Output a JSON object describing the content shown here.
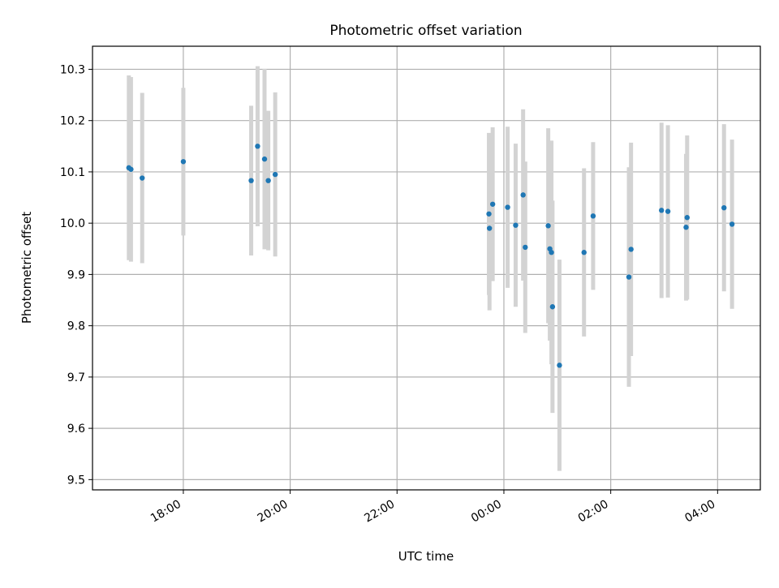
{
  "chart_data": {
    "type": "scatter",
    "title": "Photometric offset variation",
    "xlabel": "UTC time",
    "ylabel": "Photometric offset",
    "x_unit": "hours",
    "xlim": [
      16.3,
      28.8
    ],
    "ylim": [
      9.48,
      10.345
    ],
    "grid": true,
    "x_ticks": [
      {
        "value": 18,
        "label": "18:00"
      },
      {
        "value": 20,
        "label": "20:00"
      },
      {
        "value": 22,
        "label": "22:00"
      },
      {
        "value": 24,
        "label": "00:00"
      },
      {
        "value": 26,
        "label": "02:00"
      },
      {
        "value": 28,
        "label": "04:00"
      }
    ],
    "y_ticks": [
      {
        "value": 9.5,
        "label": "9.5"
      },
      {
        "value": 9.6,
        "label": "9.6"
      },
      {
        "value": 9.7,
        "label": "9.7"
      },
      {
        "value": 9.8,
        "label": "9.8"
      },
      {
        "value": 9.9,
        "label": "9.9"
      },
      {
        "value": 10.0,
        "label": "10.0"
      },
      {
        "value": 10.1,
        "label": "10.1"
      },
      {
        "value": 10.2,
        "label": "10.2"
      },
      {
        "value": 10.3,
        "label": "10.3"
      }
    ],
    "colors": {
      "marker": "#1f77b4",
      "errorbar": "#d3d3d3"
    },
    "series": [
      {
        "points": [
          {
            "x": 16.98,
            "y": 10.108,
            "err": 0.18
          },
          {
            "x": 17.02,
            "y": 10.105,
            "err": 0.18
          },
          {
            "x": 17.23,
            "y": 10.088,
            "err": 0.166
          },
          {
            "x": 18.0,
            "y": 10.12,
            "err": 0.144
          },
          {
            "x": 19.27,
            "y": 10.083,
            "err": 0.146
          },
          {
            "x": 19.39,
            "y": 10.15,
            "err": 0.156
          },
          {
            "x": 19.52,
            "y": 10.125,
            "err": 0.176
          },
          {
            "x": 19.59,
            "y": 10.083,
            "err": 0.136
          },
          {
            "x": 19.72,
            "y": 10.095,
            "err": 0.16
          },
          {
            "x": 23.72,
            "y": 10.018,
            "err": 0.158
          },
          {
            "x": 23.73,
            "y": 9.99,
            "err": 0.16
          },
          {
            "x": 23.79,
            "y": 10.037,
            "err": 0.15
          },
          {
            "x": 24.07,
            "y": 10.031,
            "err": 0.157
          },
          {
            "x": 24.22,
            "y": 9.996,
            "err": 0.159
          },
          {
            "x": 24.36,
            "y": 10.055,
            "err": 0.167
          },
          {
            "x": 24.4,
            "y": 9.953,
            "err": 0.167
          },
          {
            "x": 24.83,
            "y": 9.995,
            "err": 0.19
          },
          {
            "x": 24.86,
            "y": 9.95,
            "err": 0.179
          },
          {
            "x": 24.89,
            "y": 9.943,
            "err": 0.218
          },
          {
            "x": 24.91,
            "y": 9.837,
            "err": 0.207
          },
          {
            "x": 25.04,
            "y": 9.723,
            "err": 0.206
          },
          {
            "x": 25.5,
            "y": 9.943,
            "err": 0.164
          },
          {
            "x": 25.67,
            "y": 10.014,
            "err": 0.144
          },
          {
            "x": 26.34,
            "y": 9.895,
            "err": 0.214
          },
          {
            "x": 26.38,
            "y": 9.949,
            "err": 0.208
          },
          {
            "x": 26.95,
            "y": 10.025,
            "err": 0.171
          },
          {
            "x": 27.07,
            "y": 10.023,
            "err": 0.168
          },
          {
            "x": 27.41,
            "y": 9.992,
            "err": 0.143
          },
          {
            "x": 27.43,
            "y": 10.011,
            "err": 0.16
          },
          {
            "x": 28.12,
            "y": 10.03,
            "err": 0.163
          },
          {
            "x": 28.27,
            "y": 9.998,
            "err": 0.165
          }
        ]
      }
    ]
  }
}
